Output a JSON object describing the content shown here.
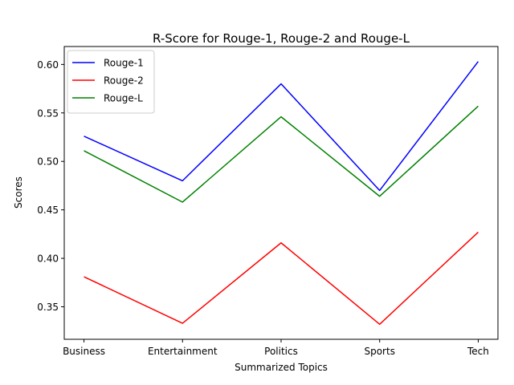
{
  "chart_data": {
    "type": "line",
    "title": "R-Score for Rouge-1, Rouge-2 and Rouge-L",
    "xlabel": "Summarized Topics",
    "ylabel": "Scores",
    "categories": [
      "Business",
      "Entertainment",
      "Politics",
      "Sports",
      "Tech"
    ],
    "yticks": [
      "0.35",
      "0.40",
      "0.45",
      "0.50",
      "0.55",
      "0.60"
    ],
    "ylim": [
      0.3165,
      0.6185
    ],
    "grid": false,
    "legend_position": "top-left",
    "series": [
      {
        "name": "Rouge-1",
        "color": "#0000ff",
        "values": [
          0.526,
          0.48,
          0.58,
          0.47,
          0.603
        ]
      },
      {
        "name": "Rouge-2",
        "color": "#ff0000",
        "values": [
          0.381,
          0.333,
          0.416,
          0.332,
          0.427
        ]
      },
      {
        "name": "Rouge-L",
        "color": "#008000",
        "values": [
          0.511,
          0.458,
          0.546,
          0.464,
          0.557
        ]
      }
    ]
  }
}
